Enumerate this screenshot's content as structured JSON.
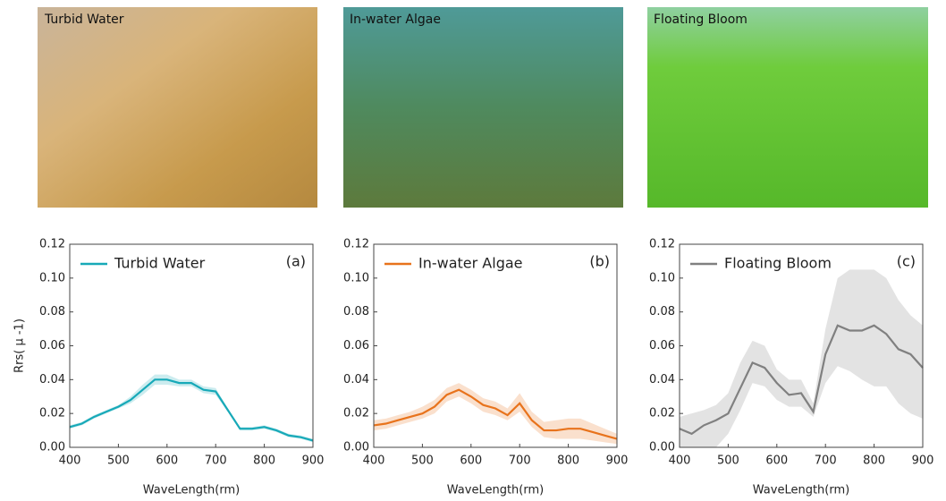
{
  "photos": [
    {
      "label": "Turbid Water"
    },
    {
      "label": "In-water Algae"
    },
    {
      "label": "Floating Bloom"
    }
  ],
  "chart_data": [
    {
      "type": "line",
      "annotation": "(a)",
      "xlabel": "WaveLength(rm)",
      "ylabel": "Rrs( μ -1)",
      "x": [
        400,
        425,
        450,
        475,
        500,
        525,
        550,
        575,
        600,
        625,
        650,
        675,
        700,
        725,
        750,
        775,
        800,
        825,
        850,
        875,
        900
      ],
      "series": [
        {
          "name": "Turbid Water",
          "color": "#17a9b8",
          "values": [
            0.012,
            0.014,
            0.018,
            0.021,
            0.024,
            0.028,
            0.034,
            0.04,
            0.04,
            0.038,
            0.038,
            0.034,
            0.033,
            0.022,
            0.011,
            0.011,
            0.012,
            0.01,
            0.007,
            0.006,
            0.004
          ],
          "lower": [
            0.011,
            0.013,
            0.017,
            0.02,
            0.023,
            0.026,
            0.031,
            0.037,
            0.037,
            0.036,
            0.036,
            0.032,
            0.031,
            0.021,
            0.01,
            0.01,
            0.011,
            0.009,
            0.006,
            0.005,
            0.003
          ],
          "upper": [
            0.013,
            0.015,
            0.019,
            0.022,
            0.025,
            0.03,
            0.037,
            0.043,
            0.043,
            0.04,
            0.04,
            0.036,
            0.035,
            0.023,
            0.012,
            0.012,
            0.013,
            0.011,
            0.008,
            0.007,
            0.005
          ]
        }
      ],
      "xlim": [
        400,
        900
      ],
      "ylim": [
        0,
        0.12
      ],
      "xticks": [
        400,
        500,
        600,
        700,
        800,
        900
      ],
      "yticks": [
        {
          "value": 0,
          "label": "0.00"
        },
        {
          "value": 0.02,
          "label": "0.02"
        },
        {
          "value": 0.04,
          "label": "0.04"
        },
        {
          "value": 0.06,
          "label": "0.06"
        },
        {
          "value": 0.08,
          "label": "0.08"
        },
        {
          "value": 0.1,
          "label": "0.10"
        },
        {
          "value": 0.12,
          "label": "0.12"
        }
      ]
    },
    {
      "type": "line",
      "annotation": "(b)",
      "xlabel": "WaveLength(rm)",
      "x": [
        400,
        425,
        450,
        475,
        500,
        525,
        550,
        575,
        600,
        625,
        650,
        675,
        700,
        725,
        750,
        775,
        800,
        825,
        850,
        875,
        900
      ],
      "series": [
        {
          "name": "In-water Algae",
          "color": "#e8731c",
          "values": [
            0.013,
            0.014,
            0.016,
            0.018,
            0.02,
            0.024,
            0.031,
            0.034,
            0.03,
            0.025,
            0.023,
            0.019,
            0.026,
            0.016,
            0.01,
            0.01,
            0.011,
            0.011,
            0.009,
            0.007,
            0.005
          ],
          "lower": [
            0.01,
            0.011,
            0.013,
            0.015,
            0.017,
            0.02,
            0.027,
            0.03,
            0.026,
            0.021,
            0.019,
            0.016,
            0.021,
            0.012,
            0.006,
            0.005,
            0.005,
            0.005,
            0.004,
            0.003,
            0.002
          ],
          "upper": [
            0.016,
            0.017,
            0.019,
            0.021,
            0.024,
            0.028,
            0.035,
            0.038,
            0.034,
            0.029,
            0.027,
            0.023,
            0.032,
            0.021,
            0.015,
            0.016,
            0.017,
            0.017,
            0.014,
            0.011,
            0.008
          ]
        }
      ],
      "xlim": [
        400,
        900
      ],
      "ylim": [
        0,
        0.12
      ],
      "xticks": [
        400,
        500,
        600,
        700,
        800,
        900
      ],
      "yticks": [
        {
          "value": 0,
          "label": "0.00"
        },
        {
          "value": 0.02,
          "label": "0.02"
        },
        {
          "value": 0.04,
          "label": "0.04"
        },
        {
          "value": 0.06,
          "label": "0.06"
        },
        {
          "value": 0.08,
          "label": "0.08"
        },
        {
          "value": 0.1,
          "label": "0.10"
        },
        {
          "value": 0.12,
          "label": "0.12"
        }
      ]
    },
    {
      "type": "line",
      "annotation": "(c)",
      "xlabel": "WaveLength(rm)",
      "x": [
        400,
        425,
        450,
        475,
        500,
        525,
        550,
        575,
        600,
        625,
        650,
        675,
        700,
        725,
        750,
        775,
        800,
        825,
        850,
        875,
        900
      ],
      "series": [
        {
          "name": "Floating Bloom",
          "color": "#808080",
          "values": [
            0.011,
            0.008,
            0.013,
            0.016,
            0.02,
            0.035,
            0.05,
            0.047,
            0.038,
            0.031,
            0.032,
            0.021,
            0.055,
            0.072,
            0.069,
            0.069,
            0.072,
            0.067,
            0.058,
            0.055,
            0.047
          ],
          "lower": [
            0.0,
            0.0,
            0.0,
            0.0,
            0.008,
            0.022,
            0.038,
            0.036,
            0.028,
            0.024,
            0.024,
            0.018,
            0.038,
            0.048,
            0.045,
            0.04,
            0.036,
            0.036,
            0.026,
            0.02,
            0.017
          ],
          "upper": [
            0.018,
            0.02,
            0.022,
            0.025,
            0.032,
            0.05,
            0.063,
            0.06,
            0.046,
            0.04,
            0.04,
            0.026,
            0.07,
            0.1,
            0.105,
            0.105,
            0.105,
            0.1,
            0.087,
            0.078,
            0.072
          ]
        }
      ],
      "xlim": [
        400,
        900
      ],
      "ylim": [
        0,
        0.12
      ],
      "xticks": [
        400,
        500,
        600,
        700,
        800,
        900
      ],
      "yticks": [
        {
          "value": 0,
          "label": "0.00"
        },
        {
          "value": 0.02,
          "label": "0.02"
        },
        {
          "value": 0.04,
          "label": "0.04"
        },
        {
          "value": 0.06,
          "label": "0.06"
        },
        {
          "value": 0.08,
          "label": "0.08"
        },
        {
          "value": 0.1,
          "label": "0.10"
        },
        {
          "value": 0.12,
          "label": "0.12"
        }
      ]
    }
  ]
}
